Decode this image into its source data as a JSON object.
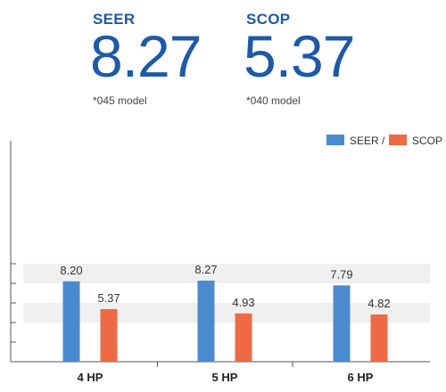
{
  "metrics": [
    {
      "label": "SEER",
      "value": "8.27",
      "note": "*045 model"
    },
    {
      "label": "SCOP",
      "value": "5.37",
      "note": "*040 model"
    }
  ],
  "colors": {
    "accent": "#1d5aa8",
    "seer": "#4a8bd0",
    "scop": "#ee6a44",
    "band": "#efefef",
    "axis": "#555555"
  },
  "chart_data": {
    "type": "bar",
    "categories": [
      "4 HP",
      "5 HP",
      "6 HP"
    ],
    "series": [
      {
        "name": "SEER /",
        "values": [
          8.2,
          8.27,
          7.79
        ],
        "labels": [
          "8.20",
          "8.27",
          "7.79"
        ],
        "color": "#4a8bd0"
      },
      {
        "name": "SCOP",
        "values": [
          5.37,
          4.93,
          4.82
        ],
        "labels": [
          "5.37",
          "4.93",
          "4.82"
        ],
        "color": "#ee6a44"
      }
    ],
    "ylim": [
      0,
      10
    ],
    "grid": "alternating horizontal bands",
    "legend": "top-right",
    "title": "",
    "xlabel": "",
    "ylabel": ""
  }
}
